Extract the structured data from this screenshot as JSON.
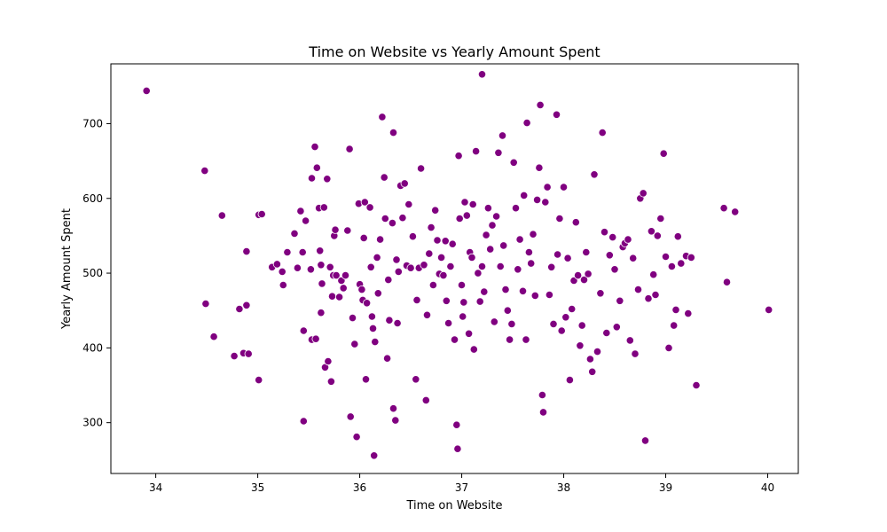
{
  "chart_data": {
    "type": "scatter",
    "title": "Time on Website vs Yearly Amount Spent",
    "xlabel": "Time on Website",
    "ylabel": "Yearly Amount Spent",
    "xlim": [
      33.56,
      40.3
    ],
    "ylim": [
      232,
      780
    ],
    "xticks": [
      34,
      35,
      36,
      37,
      38,
      39,
      40
    ],
    "yticks": [
      300,
      400,
      500,
      600,
      700
    ],
    "grid": false,
    "legend": "none",
    "marker_color": "#800080",
    "series": [
      {
        "points": [
          [
            33.91,
            744
          ],
          [
            34.48,
            637
          ],
          [
            34.49,
            459
          ],
          [
            34.57,
            415
          ],
          [
            34.65,
            577
          ],
          [
            34.77,
            389
          ],
          [
            34.82,
            452
          ],
          [
            34.86,
            393
          ],
          [
            34.89,
            529
          ],
          [
            34.89,
            457
          ],
          [
            34.91,
            392
          ],
          [
            35.01,
            578
          ],
          [
            35.01,
            357
          ],
          [
            35.04,
            579
          ],
          [
            35.14,
            508
          ],
          [
            35.19,
            512
          ],
          [
            35.24,
            502
          ],
          [
            35.25,
            484
          ],
          [
            35.29,
            528
          ],
          [
            35.36,
            553
          ],
          [
            35.39,
            507
          ],
          [
            35.42,
            583
          ],
          [
            35.44,
            528
          ],
          [
            35.45,
            423
          ],
          [
            35.45,
            302
          ],
          [
            35.47,
            570
          ],
          [
            35.52,
            505
          ],
          [
            35.53,
            627
          ],
          [
            35.53,
            411
          ],
          [
            35.56,
            669
          ],
          [
            35.57,
            412
          ],
          [
            35.58,
            641
          ],
          [
            35.6,
            587
          ],
          [
            35.61,
            530
          ],
          [
            35.62,
            511
          ],
          [
            35.62,
            447
          ],
          [
            35.63,
            486
          ],
          [
            35.65,
            588
          ],
          [
            35.66,
            374
          ],
          [
            35.68,
            626
          ],
          [
            35.69,
            382
          ],
          [
            35.71,
            508
          ],
          [
            35.72,
            355
          ],
          [
            35.73,
            469
          ],
          [
            35.74,
            497
          ],
          [
            35.75,
            550
          ],
          [
            35.76,
            558
          ],
          [
            35.77,
            497
          ],
          [
            35.8,
            468
          ],
          [
            35.82,
            490
          ],
          [
            35.84,
            480
          ],
          [
            35.86,
            497
          ],
          [
            35.88,
            557
          ],
          [
            35.9,
            666
          ],
          [
            35.91,
            308
          ],
          [
            35.93,
            440
          ],
          [
            35.95,
            405
          ],
          [
            35.97,
            281
          ],
          [
            35.99,
            593
          ],
          [
            36.0,
            485
          ],
          [
            36.02,
            478
          ],
          [
            36.03,
            464
          ],
          [
            36.04,
            547
          ],
          [
            36.05,
            595
          ],
          [
            36.06,
            358
          ],
          [
            36.07,
            460
          ],
          [
            36.1,
            588
          ],
          [
            36.11,
            508
          ],
          [
            36.12,
            442
          ],
          [
            36.13,
            426
          ],
          [
            36.14,
            256
          ],
          [
            36.15,
            408
          ],
          [
            36.17,
            521
          ],
          [
            36.18,
            473
          ],
          [
            36.2,
            545
          ],
          [
            36.22,
            709
          ],
          [
            36.24,
            628
          ],
          [
            36.25,
            573
          ],
          [
            36.27,
            386
          ],
          [
            36.28,
            491
          ],
          [
            36.29,
            437
          ],
          [
            36.32,
            567
          ],
          [
            36.33,
            319
          ],
          [
            36.33,
            688
          ],
          [
            36.35,
            303
          ],
          [
            36.36,
            518
          ],
          [
            36.37,
            433
          ],
          [
            36.38,
            502
          ],
          [
            36.4,
            617
          ],
          [
            36.42,
            574
          ],
          [
            36.44,
            620
          ],
          [
            36.46,
            510
          ],
          [
            36.48,
            592
          ],
          [
            36.5,
            507
          ],
          [
            36.52,
            549
          ],
          [
            36.55,
            358
          ],
          [
            36.56,
            464
          ],
          [
            36.58,
            507
          ],
          [
            36.6,
            640
          ],
          [
            36.63,
            511
          ],
          [
            36.65,
            330
          ],
          [
            36.66,
            444
          ],
          [
            36.68,
            526
          ],
          [
            36.7,
            561
          ],
          [
            36.72,
            484
          ],
          [
            36.74,
            584
          ],
          [
            36.76,
            544
          ],
          [
            36.78,
            499
          ],
          [
            36.8,
            521
          ],
          [
            36.82,
            497
          ],
          [
            36.84,
            543
          ],
          [
            36.85,
            463
          ],
          [
            36.87,
            433
          ],
          [
            36.89,
            509
          ],
          [
            36.91,
            539
          ],
          [
            36.93,
            411
          ],
          [
            36.95,
            297
          ],
          [
            36.96,
            265
          ],
          [
            36.97,
            657
          ],
          [
            36.98,
            573
          ],
          [
            37.0,
            484
          ],
          [
            37.01,
            442
          ],
          [
            37.02,
            461
          ],
          [
            37.03,
            595
          ],
          [
            37.05,
            577
          ],
          [
            37.07,
            419
          ],
          [
            37.08,
            528
          ],
          [
            37.1,
            521
          ],
          [
            37.11,
            592
          ],
          [
            37.12,
            398
          ],
          [
            37.14,
            663
          ],
          [
            37.16,
            500
          ],
          [
            37.18,
            462
          ],
          [
            37.2,
            509
          ],
          [
            37.2,
            766
          ],
          [
            37.22,
            475
          ],
          [
            37.24,
            551
          ],
          [
            37.26,
            587
          ],
          [
            37.28,
            532
          ],
          [
            37.3,
            564
          ],
          [
            37.32,
            435
          ],
          [
            37.34,
            576
          ],
          [
            37.36,
            661
          ],
          [
            37.38,
            509
          ],
          [
            37.4,
            684
          ],
          [
            37.41,
            537
          ],
          [
            37.43,
            478
          ],
          [
            37.45,
            450
          ],
          [
            37.47,
            411
          ],
          [
            37.49,
            432
          ],
          [
            37.51,
            648
          ],
          [
            37.53,
            587
          ],
          [
            37.55,
            505
          ],
          [
            37.57,
            545
          ],
          [
            37.6,
            476
          ],
          [
            37.61,
            604
          ],
          [
            37.63,
            411
          ],
          [
            37.64,
            701
          ],
          [
            37.66,
            528
          ],
          [
            37.68,
            513
          ],
          [
            37.7,
            552
          ],
          [
            37.72,
            470
          ],
          [
            37.74,
            598
          ],
          [
            37.76,
            641
          ],
          [
            37.77,
            725
          ],
          [
            37.79,
            337
          ],
          [
            37.8,
            314
          ],
          [
            37.82,
            595
          ],
          [
            37.84,
            615
          ],
          [
            37.86,
            471
          ],
          [
            37.88,
            508
          ],
          [
            37.9,
            432
          ],
          [
            37.93,
            712
          ],
          [
            37.94,
            525
          ],
          [
            37.96,
            573
          ],
          [
            37.98,
            423
          ],
          [
            38.0,
            615
          ],
          [
            38.02,
            441
          ],
          [
            38.04,
            520
          ],
          [
            38.06,
            357
          ],
          [
            38.08,
            452
          ],
          [
            38.1,
            490
          ],
          [
            38.12,
            568
          ],
          [
            38.14,
            497
          ],
          [
            38.16,
            403
          ],
          [
            38.18,
            430
          ],
          [
            38.2,
            491
          ],
          [
            38.22,
            528
          ],
          [
            38.24,
            499
          ],
          [
            38.26,
            385
          ],
          [
            38.28,
            368
          ],
          [
            38.3,
            632
          ],
          [
            38.33,
            395
          ],
          [
            38.36,
            473
          ],
          [
            38.38,
            688
          ],
          [
            38.4,
            555
          ],
          [
            38.42,
            420
          ],
          [
            38.45,
            524
          ],
          [
            38.48,
            548
          ],
          [
            38.5,
            505
          ],
          [
            38.52,
            428
          ],
          [
            38.55,
            463
          ],
          [
            38.58,
            535
          ],
          [
            38.6,
            540
          ],
          [
            38.63,
            545
          ],
          [
            38.65,
            410
          ],
          [
            38.68,
            520
          ],
          [
            38.7,
            392
          ],
          [
            38.73,
            478
          ],
          [
            38.75,
            600
          ],
          [
            38.78,
            607
          ],
          [
            38.8,
            276
          ],
          [
            38.83,
            466
          ],
          [
            38.86,
            556
          ],
          [
            38.88,
            498
          ],
          [
            38.9,
            471
          ],
          [
            38.92,
            550
          ],
          [
            38.95,
            573
          ],
          [
            38.98,
            660
          ],
          [
            39.0,
            522
          ],
          [
            39.03,
            400
          ],
          [
            39.06,
            509
          ],
          [
            39.08,
            430
          ],
          [
            39.1,
            451
          ],
          [
            39.12,
            549
          ],
          [
            39.15,
            513
          ],
          [
            39.2,
            523
          ],
          [
            39.22,
            446
          ],
          [
            39.25,
            521
          ],
          [
            39.3,
            350
          ],
          [
            39.57,
            587
          ],
          [
            39.6,
            488
          ],
          [
            39.68,
            582
          ],
          [
            40.01,
            451
          ]
        ]
      }
    ]
  }
}
